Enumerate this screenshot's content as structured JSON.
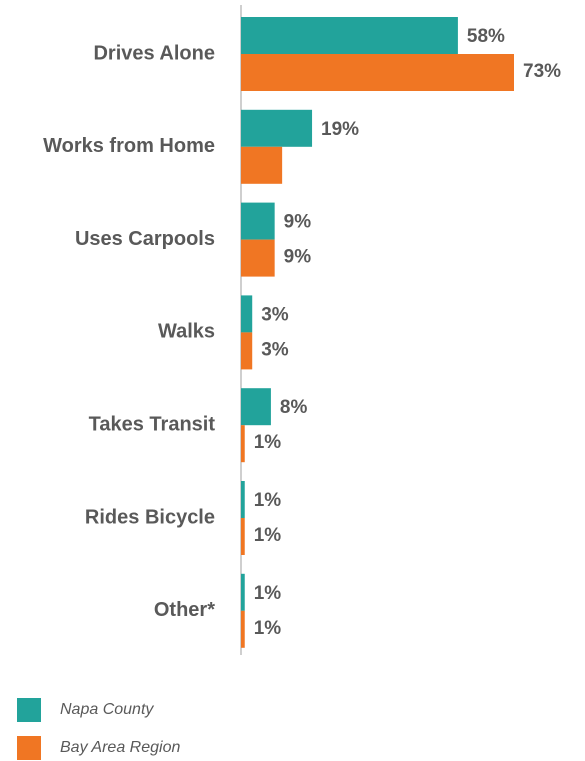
{
  "chart_data": {
    "type": "bar",
    "orientation": "horizontal",
    "categories": [
      "Drives Alone",
      "Works from Home",
      "Uses Carpools",
      "Walks",
      "Takes Transit",
      "Rides Bicycle",
      "Other*"
    ],
    "series": [
      {
        "name": "Napa County",
        "color": "#22a39b",
        "values": [
          58,
          19,
          9,
          3,
          8,
          1,
          1
        ],
        "value_labels": [
          "58%",
          "19%",
          "9%",
          "3%",
          "8%",
          "1%",
          "1%"
        ]
      },
      {
        "name": "Bay Area Region",
        "color": "#f07623",
        "values": [
          73,
          11,
          9,
          3,
          1,
          1,
          1
        ],
        "value_labels": [
          "73%",
          null,
          "9%",
          "3%",
          "1%",
          "1%",
          "1%"
        ]
      }
    ]
  }
}
